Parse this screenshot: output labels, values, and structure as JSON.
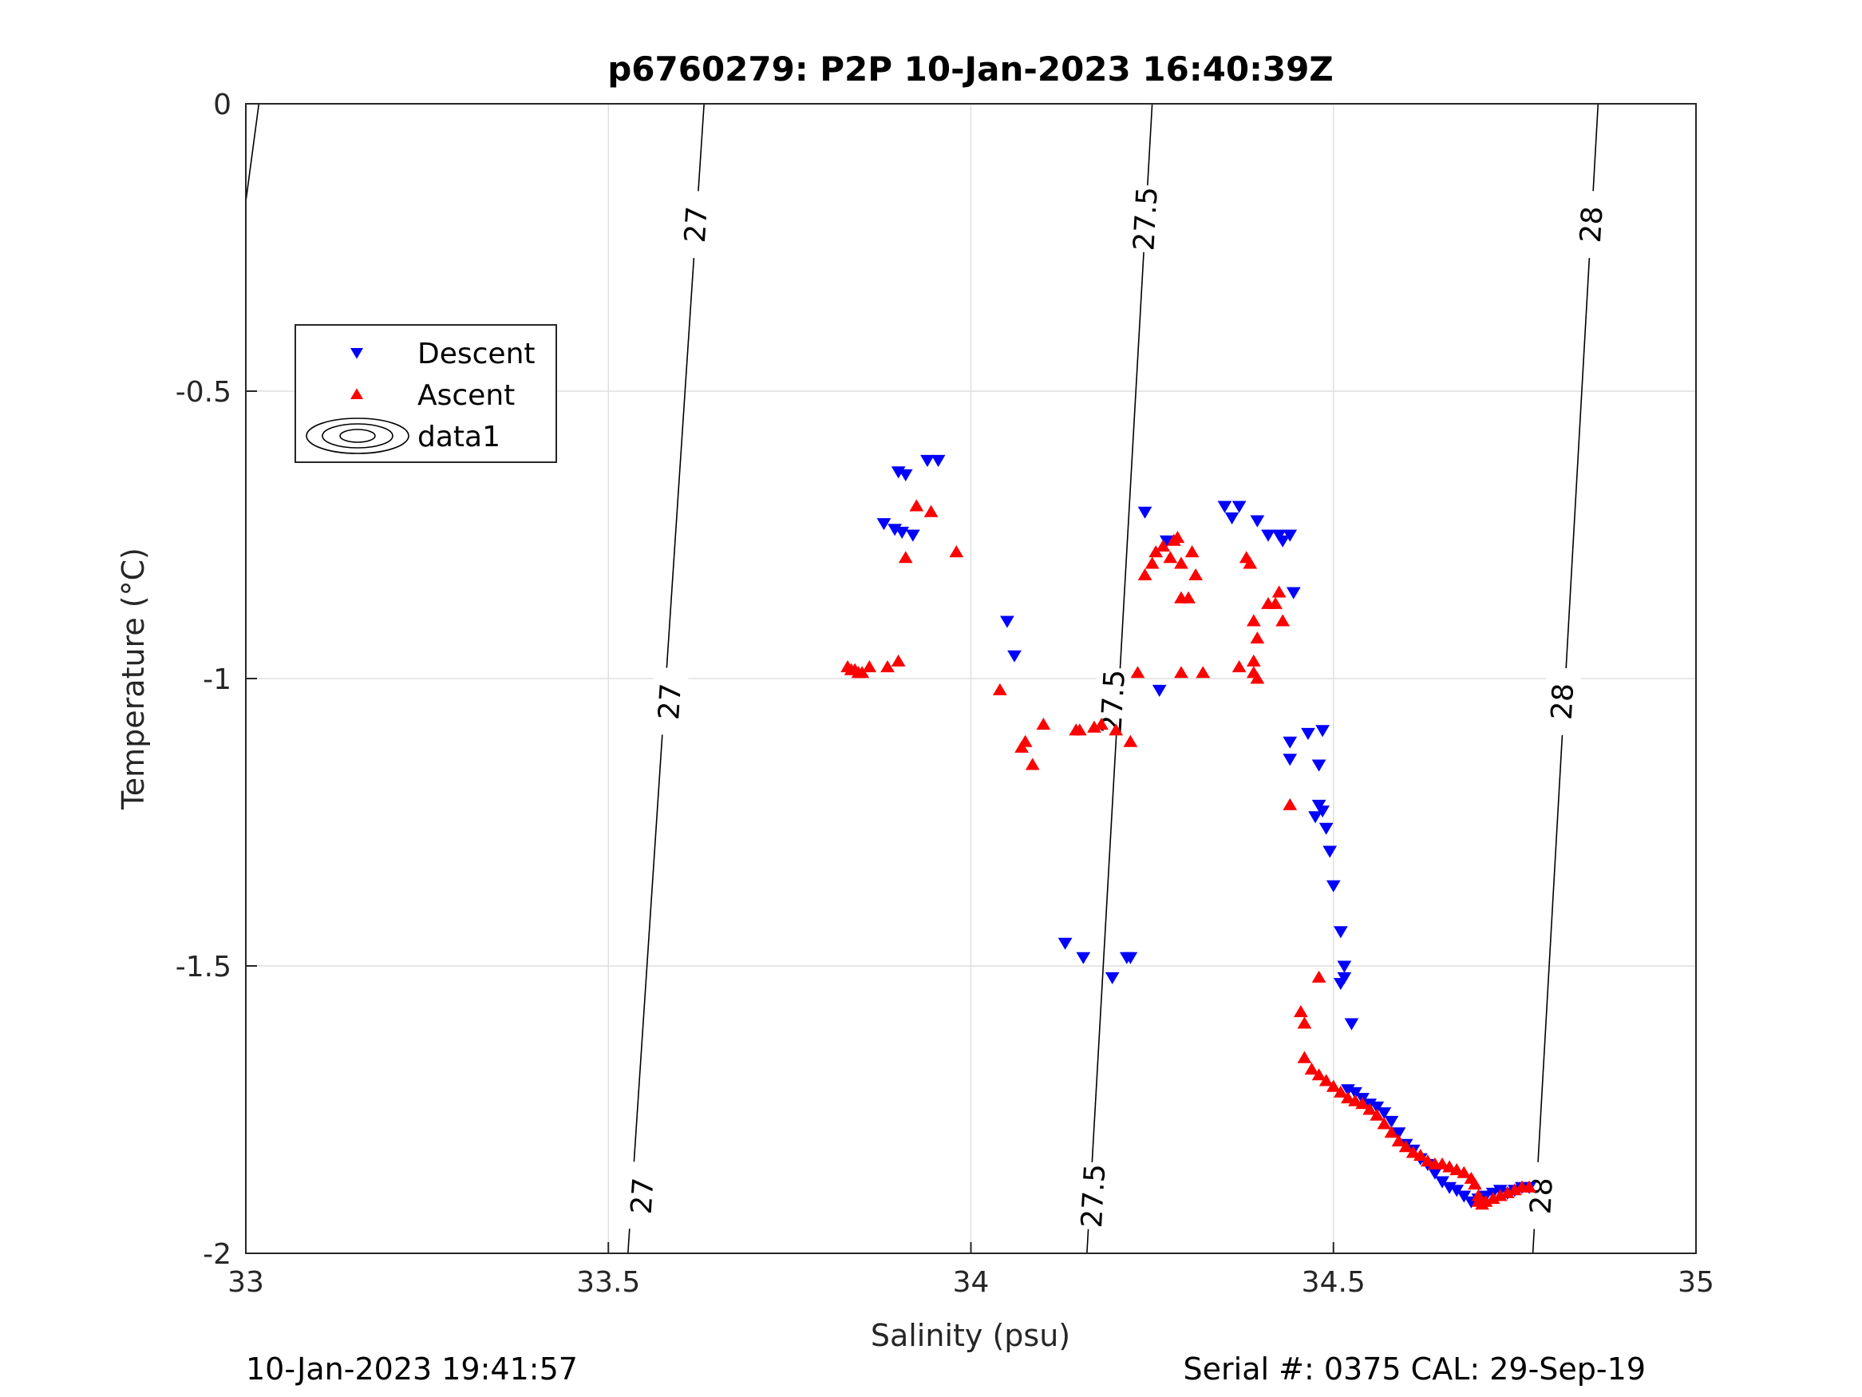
{
  "chart_data": {
    "type": "scatter",
    "title": "p6760279: P2P 10-Jan-2023 16:40:39Z",
    "xlabel": "Salinity (psu)",
    "ylabel": "Temperature (°C)",
    "xlim": [
      33,
      35
    ],
    "ylim": [
      -2,
      0
    ],
    "xticks": [
      33,
      33.5,
      34,
      34.5,
      35
    ],
    "xtick_labels": [
      "33",
      "33.5",
      "34",
      "34.5",
      "35"
    ],
    "yticks": [
      -2,
      -1.5,
      -1,
      -0.5,
      0
    ],
    "ytick_labels": [
      "-2",
      "-1.5",
      "-1",
      "-0.5",
      "0"
    ],
    "grid": true,
    "legend_position": "top-left",
    "legend": [
      "Descent",
      "Ascent",
      "data1"
    ],
    "footer_left": "10-Jan-2023 19:41:57",
    "footer_right": "Serial #: 0375  CAL: 29-Sep-19",
    "density_contours": [
      {
        "label": "27",
        "points": [
          [
            33.632,
            0
          ],
          [
            33.527,
            -2
          ]
        ],
        "label_positions": [
          [
            33.62,
            -0.21
          ],
          [
            33.584,
            -1.04
          ],
          [
            33.546,
            -1.9
          ]
        ]
      },
      {
        "label": "27.5",
        "points": [
          [
            34.25,
            0
          ],
          [
            34.16,
            -2
          ]
        ],
        "label_positions": [
          [
            34.24,
            -0.2
          ],
          [
            34.195,
            -1.04
          ],
          [
            34.168,
            -1.9
          ]
        ]
      },
      {
        "label": "28",
        "points": [
          [
            34.865,
            0
          ],
          [
            34.775,
            -2
          ]
        ],
        "label_positions": [
          [
            34.855,
            -0.21
          ],
          [
            34.815,
            -1.04
          ],
          [
            34.786,
            -1.9
          ]
        ]
      },
      {
        "label": "",
        "points": [
          [
            33.018,
            0
          ],
          [
            33.0,
            -0.17
          ]
        ],
        "label_positions": []
      }
    ],
    "series": [
      {
        "name": "Descent",
        "color": "#0000ff",
        "marker": "triangle-down",
        "points": [
          [
            33.9,
            -0.64
          ],
          [
            33.91,
            -0.645
          ],
          [
            33.94,
            -0.62
          ],
          [
            33.955,
            -0.62
          ],
          [
            33.88,
            -0.73
          ],
          [
            33.895,
            -0.74
          ],
          [
            33.905,
            -0.745
          ],
          [
            33.92,
            -0.75
          ],
          [
            34.05,
            -0.9
          ],
          [
            34.06,
            -0.96
          ],
          [
            34.13,
            -1.46
          ],
          [
            34.155,
            -1.485
          ],
          [
            34.195,
            -1.52
          ],
          [
            34.22,
            -1.485
          ],
          [
            34.215,
            -1.485
          ],
          [
            34.26,
            -1.02
          ],
          [
            34.24,
            -0.71
          ],
          [
            34.27,
            -0.76
          ],
          [
            34.35,
            -0.7
          ],
          [
            34.36,
            -0.72
          ],
          [
            34.37,
            -0.7
          ],
          [
            34.395,
            -0.725
          ],
          [
            34.41,
            -0.75
          ],
          [
            34.425,
            -0.75
          ],
          [
            34.43,
            -0.76
          ],
          [
            34.44,
            -0.75
          ],
          [
            34.445,
            -0.85
          ],
          [
            34.44,
            -1.11
          ],
          [
            34.465,
            -1.095
          ],
          [
            34.485,
            -1.09
          ],
          [
            34.48,
            -1.15
          ],
          [
            34.44,
            -1.14
          ],
          [
            34.48,
            -1.22
          ],
          [
            34.485,
            -1.23
          ],
          [
            34.475,
            -1.24
          ],
          [
            34.49,
            -1.26
          ],
          [
            34.495,
            -1.3
          ],
          [
            34.5,
            -1.36
          ],
          [
            34.51,
            -1.44
          ],
          [
            34.515,
            -1.5
          ],
          [
            34.515,
            -1.52
          ],
          [
            34.51,
            -1.53
          ],
          [
            34.525,
            -1.6
          ],
          [
            34.52,
            -1.715
          ],
          [
            34.53,
            -1.72
          ],
          [
            34.54,
            -1.73
          ],
          [
            34.55,
            -1.74
          ],
          [
            34.56,
            -1.745
          ],
          [
            34.57,
            -1.755
          ],
          [
            34.58,
            -1.77
          ],
          [
            34.59,
            -1.79
          ],
          [
            34.6,
            -1.81
          ],
          [
            34.61,
            -1.82
          ],
          [
            34.62,
            -1.835
          ],
          [
            34.63,
            -1.845
          ],
          [
            34.64,
            -1.86
          ],
          [
            34.65,
            -1.875
          ],
          [
            34.66,
            -1.885
          ],
          [
            34.67,
            -1.89
          ],
          [
            34.68,
            -1.9
          ],
          [
            34.69,
            -1.91
          ],
          [
            34.7,
            -1.905
          ],
          [
            34.71,
            -1.9
          ],
          [
            34.72,
            -1.895
          ],
          [
            34.73,
            -1.89
          ],
          [
            34.74,
            -1.895
          ],
          [
            34.75,
            -1.89
          ],
          [
            34.76,
            -1.885
          ],
          [
            34.77,
            -1.885
          ]
        ]
      },
      {
        "name": "Ascent",
        "color": "#ff0000",
        "marker": "triangle-up",
        "points": [
          [
            33.83,
            -0.98
          ],
          [
            33.835,
            -0.985
          ],
          [
            33.84,
            -0.985
          ],
          [
            33.845,
            -0.99
          ],
          [
            33.85,
            -0.99
          ],
          [
            33.86,
            -0.98
          ],
          [
            33.885,
            -0.98
          ],
          [
            33.9,
            -0.97
          ],
          [
            33.91,
            -0.79
          ],
          [
            33.925,
            -0.7
          ],
          [
            33.945,
            -0.71
          ],
          [
            33.98,
            -0.78
          ],
          [
            34.04,
            -1.02
          ],
          [
            34.07,
            -1.12
          ],
          [
            34.075,
            -1.11
          ],
          [
            34.085,
            -1.15
          ],
          [
            34.1,
            -1.08
          ],
          [
            34.145,
            -1.09
          ],
          [
            34.15,
            -1.09
          ],
          [
            34.17,
            -1.085
          ],
          [
            34.18,
            -1.08
          ],
          [
            34.2,
            -1.09
          ],
          [
            34.22,
            -1.11
          ],
          [
            34.23,
            -0.99
          ],
          [
            34.24,
            -0.82
          ],
          [
            34.25,
            -0.8
          ],
          [
            34.255,
            -0.78
          ],
          [
            34.265,
            -0.77
          ],
          [
            34.275,
            -0.79
          ],
          [
            34.28,
            -0.76
          ],
          [
            34.285,
            -0.755
          ],
          [
            34.29,
            -0.8
          ],
          [
            34.29,
            -0.86
          ],
          [
            34.3,
            -0.86
          ],
          [
            34.305,
            -0.78
          ],
          [
            34.31,
            -0.82
          ],
          [
            34.29,
            -0.99
          ],
          [
            34.32,
            -0.99
          ],
          [
            34.37,
            -0.98
          ],
          [
            34.38,
            -0.79
          ],
          [
            34.385,
            -0.8
          ],
          [
            34.39,
            -0.9
          ],
          [
            34.395,
            -0.93
          ],
          [
            34.39,
            -0.97
          ],
          [
            34.39,
            -0.99
          ],
          [
            34.395,
            -1.0
          ],
          [
            34.41,
            -0.87
          ],
          [
            34.42,
            -0.87
          ],
          [
            34.425,
            -0.85
          ],
          [
            34.43,
            -0.9
          ],
          [
            34.44,
            -1.22
          ],
          [
            34.455,
            -1.58
          ],
          [
            34.46,
            -1.6
          ],
          [
            34.48,
            -1.52
          ],
          [
            34.46,
            -1.66
          ],
          [
            34.47,
            -1.68
          ],
          [
            34.48,
            -1.69
          ],
          [
            34.49,
            -1.7
          ],
          [
            34.5,
            -1.71
          ],
          [
            34.51,
            -1.72
          ],
          [
            34.52,
            -1.73
          ],
          [
            34.53,
            -1.735
          ],
          [
            34.54,
            -1.74
          ],
          [
            34.55,
            -1.75
          ],
          [
            34.56,
            -1.76
          ],
          [
            34.57,
            -1.775
          ],
          [
            34.58,
            -1.79
          ],
          [
            34.59,
            -1.805
          ],
          [
            34.6,
            -1.815
          ],
          [
            34.61,
            -1.825
          ],
          [
            34.62,
            -1.83
          ],
          [
            34.63,
            -1.84
          ],
          [
            34.64,
            -1.845
          ],
          [
            34.65,
            -1.845
          ],
          [
            34.66,
            -1.85
          ],
          [
            34.67,
            -1.855
          ],
          [
            34.68,
            -1.86
          ],
          [
            34.69,
            -1.87
          ],
          [
            34.695,
            -1.88
          ],
          [
            34.7,
            -1.9
          ],
          [
            34.7,
            -1.91
          ],
          [
            34.705,
            -1.915
          ],
          [
            34.71,
            -1.91
          ],
          [
            34.72,
            -1.905
          ],
          [
            34.73,
            -1.9
          ],
          [
            34.74,
            -1.895
          ],
          [
            34.75,
            -1.89
          ],
          [
            34.76,
            -1.885
          ],
          [
            34.77,
            -1.885
          ]
        ]
      }
    ]
  }
}
